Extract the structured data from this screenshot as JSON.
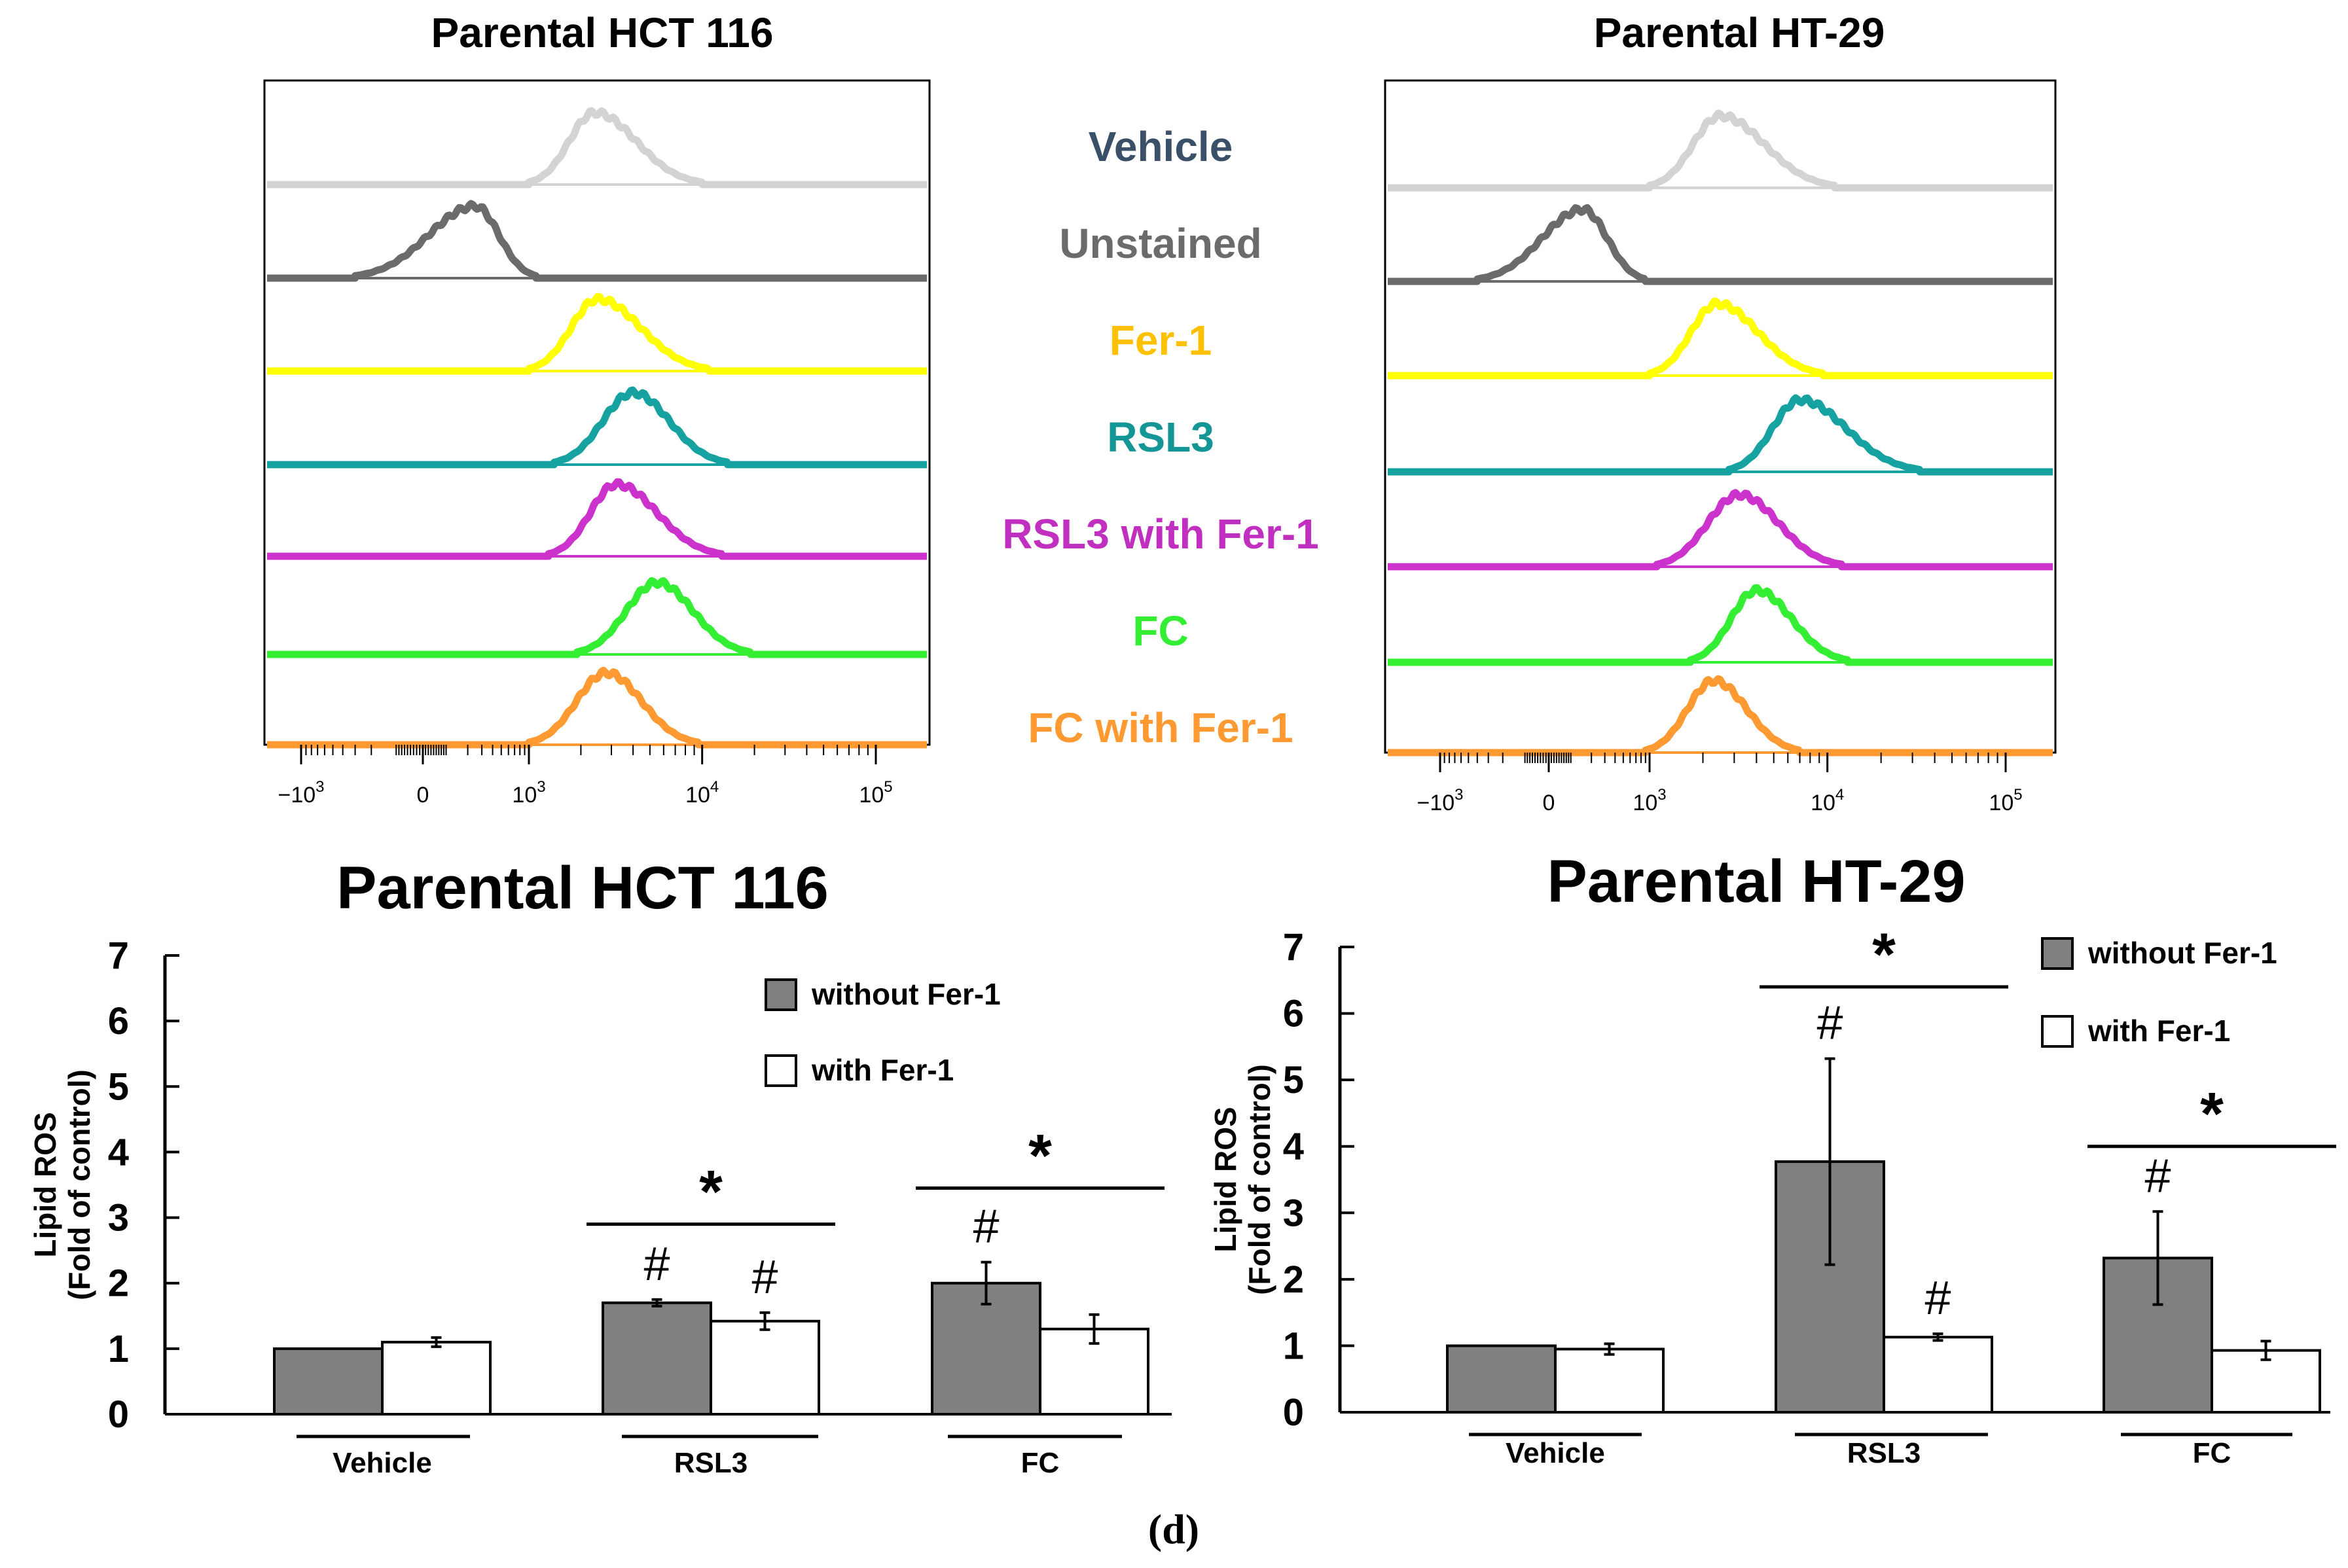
{
  "figure_label": "(d)",
  "colors": {
    "Vehicle": "#d3d3d3",
    "Unstained": "#6b6b6b",
    "Fer-1": "#ffff00",
    "RSL3": "#17a2a2",
    "RSL3 with Fer-1": "#cc33cc",
    "FC": "#33ee33",
    "FC with Fer-1": "#ff9a33",
    "label_Vehicle": "#3a5068",
    "label_Unstained": "#6b6b6b",
    "label_Fer-1": "#ffc000",
    "label_RSL3": "#149696",
    "label_RSL3 with Fer-1": "#c02fc0",
    "label_FC": "#33ee33",
    "label_FC with Fer-1": "#ff9a33",
    "bar_without": "#808080",
    "bar_with": "#ffffff"
  },
  "chart_data": [
    {
      "type": "histogram",
      "title": "Parental HCT 116",
      "xscale": "biexponential",
      "tick_labels": [
        "-10^3",
        "0",
        "10^3",
        "10^4",
        "10^5"
      ],
      "series": [
        {
          "name": "Vehicle",
          "peak": 2400,
          "range": [
            1000,
            10000
          ]
        },
        {
          "name": "Unstained",
          "peak": 250,
          "range": [
            -300,
            1100
          ]
        },
        {
          "name": "Fer-1",
          "peak": 2500,
          "range": [
            1000,
            11000
          ]
        },
        {
          "name": "RSL3",
          "peak": 4000,
          "range": [
            1400,
            14000
          ]
        },
        {
          "name": "RSL3 with Fer-1",
          "peak": 3200,
          "range": [
            1300,
            13000
          ]
        },
        {
          "name": "FC",
          "peak": 5500,
          "range": [
            1900,
            19000
          ]
        },
        {
          "name": "FC with Fer-1",
          "peak": 2800,
          "range": [
            1000,
            9500
          ]
        }
      ]
    },
    {
      "type": "histogram",
      "title": "Parental HT-29",
      "xscale": "biexponential",
      "tick_labels": [
        "-10^3",
        "0",
        "10^3",
        "10^4",
        "10^5"
      ],
      "series": [
        {
          "name": "Vehicle",
          "peak": 2500,
          "range": [
            1000,
            11000
          ]
        },
        {
          "name": "Unstained",
          "peak": 150,
          "range": [
            -400,
            900
          ]
        },
        {
          "name": "Fer-1",
          "peak": 2400,
          "range": [
            1000,
            9500
          ]
        },
        {
          "name": "RSL3",
          "peak": 7000,
          "range": [
            2800,
            33000
          ]
        },
        {
          "name": "RSL3 with Fer-1",
          "peak": 3200,
          "range": [
            1100,
            12000
          ]
        },
        {
          "name": "FC",
          "peak": 4000,
          "range": [
            1700,
            13000
          ]
        },
        {
          "name": "FC with Fer-1",
          "peak": 2300,
          "range": [
            900,
            7000
          ]
        }
      ]
    },
    {
      "type": "bar",
      "title": "Parental HCT 116",
      "ylabel": "Lipid ROS",
      "ylabel2": "(Fold of control)",
      "ylim": [
        0,
        7
      ],
      "yticks": [
        "0",
        "1",
        "2",
        "3",
        "4",
        "5",
        "6",
        "7"
      ],
      "categories": [
        "Vehicle",
        "RSL3",
        "FC"
      ],
      "series": [
        {
          "name": "without Fer-1",
          "values": [
            1.0,
            1.7,
            2.0
          ],
          "errors": [
            0,
            0.05,
            0.32
          ]
        },
        {
          "name": "with Fer-1",
          "values": [
            1.1,
            1.42,
            1.3
          ],
          "errors": [
            0.07,
            0.13,
            0.22
          ]
        }
      ],
      "hash_marks": [
        {
          "category": "RSL3",
          "series": "without Fer-1",
          "text": "#"
        },
        {
          "category": "RSL3",
          "series": "with Fer-1",
          "text": "#"
        },
        {
          "category": "FC",
          "series": "without Fer-1",
          "text": "#"
        }
      ],
      "significance": [
        {
          "category": "RSL3",
          "text": "*",
          "y": 2.9
        },
        {
          "category": "FC",
          "text": "*",
          "y": 3.45
        }
      ]
    },
    {
      "type": "bar",
      "title": "Parental HT-29",
      "ylabel": "Lipid ROS",
      "ylabel2": "(Fold of control)",
      "ylim": [
        0,
        7
      ],
      "yticks": [
        "0",
        "1",
        "2",
        "3",
        "4",
        "5",
        "6",
        "7"
      ],
      "categories": [
        "Vehicle",
        "RSL3",
        "FC"
      ],
      "series": [
        {
          "name": "without Fer-1",
          "values": [
            1.0,
            3.77,
            2.32
          ],
          "errors": [
            0,
            1.55,
            0.7
          ]
        },
        {
          "name": "with Fer-1",
          "values": [
            0.95,
            1.13,
            0.93
          ],
          "errors": [
            0.08,
            0.05,
            0.14
          ]
        }
      ],
      "hash_marks": [
        {
          "category": "RSL3",
          "series": "without Fer-1",
          "text": "#"
        },
        {
          "category": "RSL3",
          "series": "with Fer-1",
          "text": "#"
        },
        {
          "category": "FC",
          "series": "without Fer-1",
          "text": "#"
        }
      ],
      "significance": [
        {
          "category": "RSL3",
          "text": "*",
          "y": 6.4
        },
        {
          "category": "FC",
          "text": "*",
          "y": 4.0
        }
      ]
    }
  ]
}
